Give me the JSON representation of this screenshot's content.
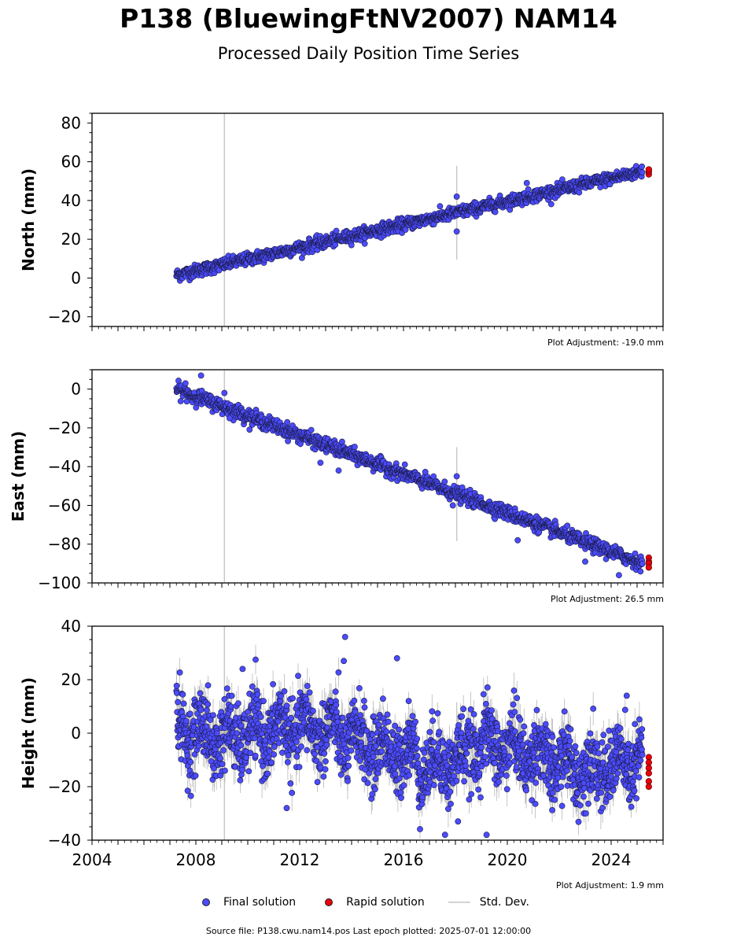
{
  "header": {
    "title": "P138 (BluewingFtNV2007) NAM14",
    "subtitle": "Processed Daily Position Time Series"
  },
  "footer": {
    "source": "Source file: P138.cwu.nam14.pos  Last epoch plotted: 2025-07-01 12:00:00"
  },
  "legend": {
    "final": "Final solution",
    "rapid": "Rapid solution",
    "std": "Std. Dev."
  },
  "colors": {
    "final": "#4b4bff",
    "rapid": "#e8000b",
    "std": "#c8c8c8"
  },
  "chart_data": [
    {
      "type": "scatter",
      "panel": "north",
      "ylabel": "North (mm)",
      "adjustment": "Plot Adjustment: -19.0 mm",
      "xlim": [
        2004,
        2026
      ],
      "ylim": [
        -25,
        85
      ],
      "yticks": [
        -20,
        0,
        20,
        40,
        60,
        80
      ],
      "start": 2007.25,
      "end": 2025.2,
      "trend": [
        1.5,
        55
      ],
      "noise": 1.6,
      "std_dev": 1.2,
      "spike_years": [
        2009.1,
        2018.05
      ],
      "outliers": [
        [
          2018.05,
          24
        ],
        [
          2018.05,
          42
        ],
        [
          2020.75,
          49
        ]
      ],
      "rapid": [
        [
          2025.45,
          53.5
        ],
        [
          2025.45,
          55
        ],
        [
          2025.45,
          56
        ]
      ]
    },
    {
      "type": "scatter",
      "panel": "east",
      "ylabel": "East (mm)",
      "adjustment": "Plot Adjustment: 26.5 mm",
      "xlim": [
        2004,
        2026
      ],
      "ylim": [
        -100,
        10
      ],
      "yticks": [
        -100,
        -80,
        -60,
        -40,
        -20,
        0
      ],
      "start": 2007.25,
      "end": 2025.2,
      "trend": [
        0,
        -90
      ],
      "noise": 1.8,
      "std_dev": 1.4,
      "spike_years": [
        2009.1,
        2018.05
      ],
      "outliers": [
        [
          2007.6,
          3
        ],
        [
          2008.2,
          7
        ],
        [
          2009.1,
          -2
        ],
        [
          2009.3,
          -15
        ],
        [
          2018.05,
          -45
        ],
        [
          2017.9,
          -60
        ],
        [
          2023.0,
          -89
        ],
        [
          2024.3,
          -96
        ],
        [
          2012.8,
          -38
        ],
        [
          2020.4,
          -78
        ],
        [
          2013.5,
          -42
        ]
      ],
      "rapid": [
        [
          2025.45,
          -87
        ],
        [
          2025.45,
          -89
        ],
        [
          2025.45,
          -90
        ],
        [
          2025.45,
          -92
        ]
      ]
    },
    {
      "type": "scatter",
      "panel": "height",
      "ylabel": "Height (mm)",
      "adjustment": "Plot Adjustment: 1.9 mm",
      "xlim": [
        2004,
        2026
      ],
      "ylim": [
        -40,
        40
      ],
      "yticks": [
        -40,
        -20,
        0,
        20,
        40
      ],
      "xticks": [
        2004,
        2008,
        2012,
        2016,
        2020,
        2024
      ],
      "start": 2007.25,
      "end": 2025.2,
      "trend": [
        3,
        -12
      ],
      "noise": 6.5,
      "std_dev": 5,
      "spike_years": [
        2009.1,
        2018.05
      ],
      "outliers": [
        [
          2013.75,
          36
        ],
        [
          2013.7,
          27
        ],
        [
          2015.75,
          28
        ],
        [
          2009.8,
          24
        ],
        [
          2017.6,
          -38
        ],
        [
          2019.2,
          -38
        ],
        [
          2018.1,
          -33
        ],
        [
          2011.5,
          -28
        ],
        [
          2024.6,
          14
        ]
      ],
      "rapid": [
        [
          2025.45,
          -9
        ],
        [
          2025.45,
          -11
        ],
        [
          2025.45,
          -13
        ],
        [
          2025.45,
          -15
        ],
        [
          2025.45,
          -18
        ],
        [
          2025.45,
          -20
        ]
      ]
    }
  ]
}
